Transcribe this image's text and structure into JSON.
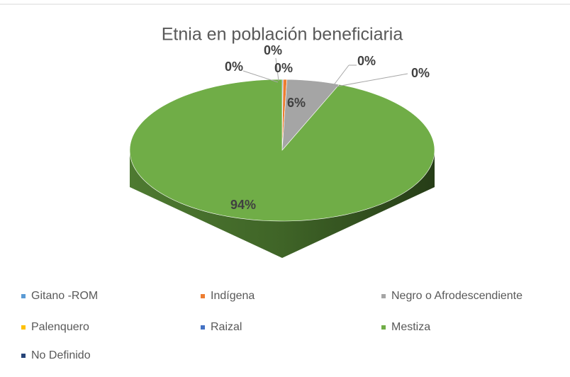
{
  "chart_data": {
    "type": "pie3d",
    "title": "Etnia en población beneficiaria",
    "categories": [
      "Gitano -ROM",
      "Indígena",
      "Negro o Afrodescendiente",
      "Palenquero",
      "Raizal",
      "Mestiza",
      "No Definido"
    ],
    "values": [
      0.1,
      0.4,
      5.6,
      0.0,
      0.0,
      93.9,
      0.0
    ],
    "value_labels": [
      "0%",
      "0%",
      "6%",
      "0%",
      "0%",
      "94%",
      "0%"
    ],
    "colors": [
      "#5b9bd5",
      "#ed7d31",
      "#a5a5a5",
      "#ffc000",
      "#4472c4",
      "#70ad47",
      "#264478"
    ],
    "legend": "bottom"
  }
}
